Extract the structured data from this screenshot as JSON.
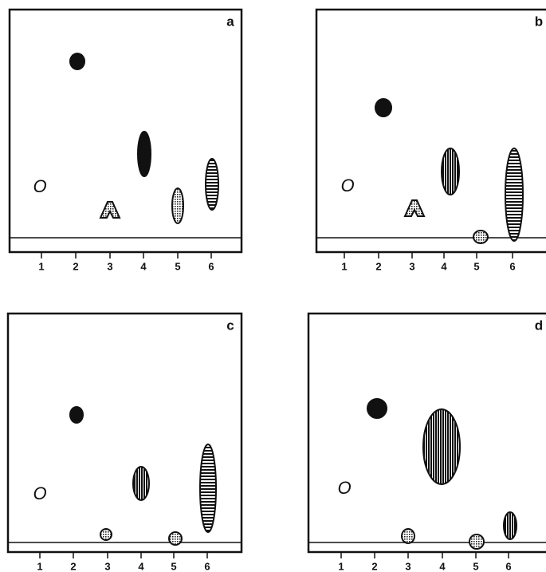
{
  "panels": [
    {
      "letter": "a",
      "origin": "O",
      "lanes": [
        "1",
        "2",
        "3",
        "4",
        "5",
        "6"
      ]
    },
    {
      "letter": "b",
      "origin": "O",
      "lanes": [
        "1",
        "2",
        "3",
        "4",
        "5",
        "6"
      ]
    },
    {
      "letter": "c",
      "origin": "O",
      "lanes": [
        "1",
        "2",
        "3",
        "4",
        "5",
        "6"
      ]
    },
    {
      "letter": "d",
      "origin": "O",
      "lanes": [
        "1",
        "2",
        "3",
        "4",
        "5",
        "6"
      ]
    }
  ]
}
